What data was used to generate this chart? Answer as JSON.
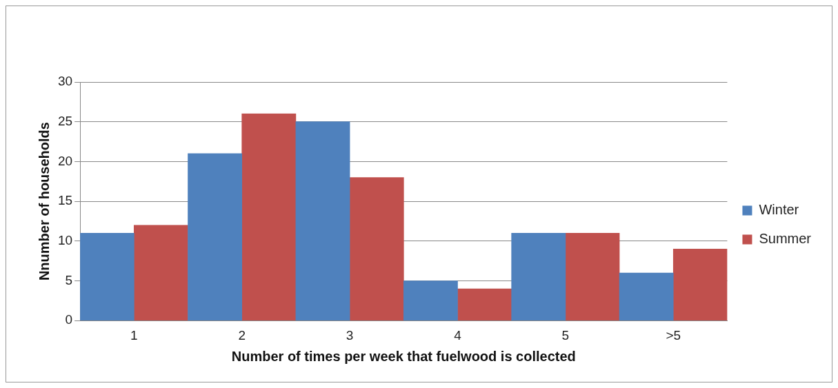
{
  "chart_data": {
    "type": "bar",
    "xlabel": "Number of times per week that fuelwood is collected",
    "ylabel": "Nnumber of households",
    "categories": [
      "1",
      "2",
      "3",
      "4",
      "5",
      ">5"
    ],
    "series": [
      {
        "name": "Winter",
        "color": "#4f81bd",
        "values": [
          11,
          21,
          25,
          5,
          11,
          6
        ]
      },
      {
        "name": "Summer",
        "color": "#c0504d",
        "values": [
          12,
          26,
          18,
          4,
          11,
          9
        ]
      }
    ],
    "ylim": [
      0,
      30
    ],
    "yticks": [
      0,
      5,
      10,
      15,
      20,
      25,
      30
    ],
    "grid": "y",
    "legend": "right"
  }
}
